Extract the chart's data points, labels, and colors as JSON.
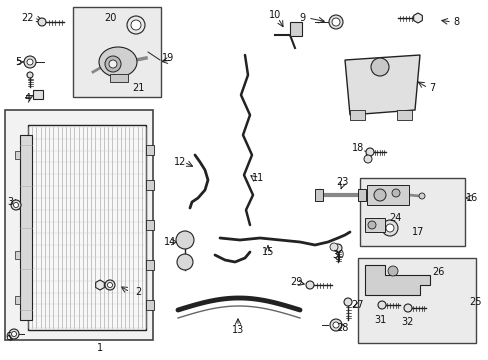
{
  "background_color": "#ffffff",
  "figure_width": 4.89,
  "figure_height": 3.6,
  "dpi": 100,
  "line_color": "#222222",
  "box_edge_color": "#444444",
  "box_face_color": "#ebebeb",
  "label_fontsize": 7,
  "label_color": "#111111"
}
